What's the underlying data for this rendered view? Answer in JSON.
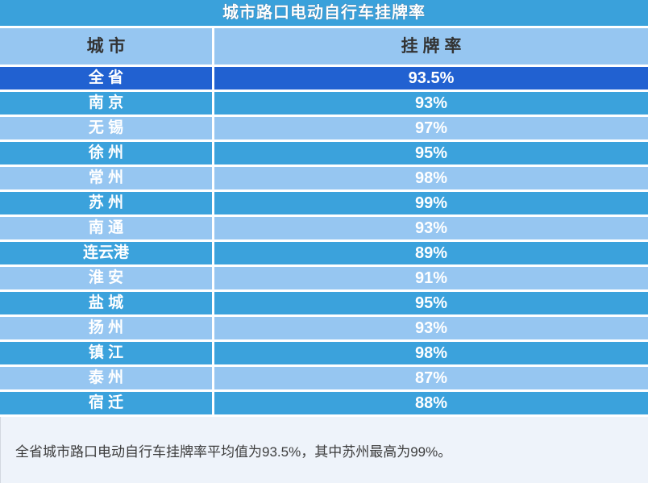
{
  "title": "城市路口电动自行车挂牌率",
  "table": {
    "columns": [
      "城 市",
      "挂 牌 率"
    ],
    "rows": [
      {
        "city": "全 省",
        "rate": "93.5%"
      },
      {
        "city": "南 京",
        "rate": "93%"
      },
      {
        "city": "无 锡",
        "rate": "97%"
      },
      {
        "city": "徐 州",
        "rate": "95%"
      },
      {
        "city": "常 州",
        "rate": "98%"
      },
      {
        "city": "苏 州",
        "rate": "99%"
      },
      {
        "city": "南 通",
        "rate": "93%"
      },
      {
        "city": "连云港",
        "rate": "89%"
      },
      {
        "city": "淮 安",
        "rate": "91%"
      },
      {
        "city": "盐 城",
        "rate": "95%"
      },
      {
        "city": "扬 州",
        "rate": "93%"
      },
      {
        "city": "镇 江",
        "rate": "98%"
      },
      {
        "city": "泰 州",
        "rate": "87%"
      },
      {
        "city": "宿 迁",
        "rate": "88%"
      }
    ]
  },
  "footer": {
    "note": "全省城市路口电动自行车挂牌率平均值为93.5%，其中苏州最高为99%。"
  },
  "colors": {
    "title-bg": "#3AA1DB",
    "header-bg": "#96C6F1",
    "header-text": "#333333",
    "row-dark": "#2161D1",
    "row-medium": "#3BA2DC",
    "row-light": "#96C6F1",
    "footer-bg": "#EEF3FA",
    "footer-text": "#3D3D3D"
  },
  "chart_data": {
    "type": "table",
    "title": "城市路口电动自行车挂牌率",
    "columns": [
      "城市",
      "挂牌率"
    ],
    "categories": [
      "全省",
      "南京",
      "无锡",
      "徐州",
      "常州",
      "苏州",
      "南通",
      "连云港",
      "淮安",
      "盐城",
      "扬州",
      "镇江",
      "泰州",
      "宿迁"
    ],
    "values": [
      93.5,
      93,
      97,
      95,
      98,
      99,
      93,
      89,
      91,
      95,
      93,
      98,
      87,
      88
    ],
    "unit": "%",
    "highlight_row": "全省",
    "annotation": "全省城市路口电动自行车挂牌率平均值为93.5%，其中苏州最高为99%。"
  }
}
